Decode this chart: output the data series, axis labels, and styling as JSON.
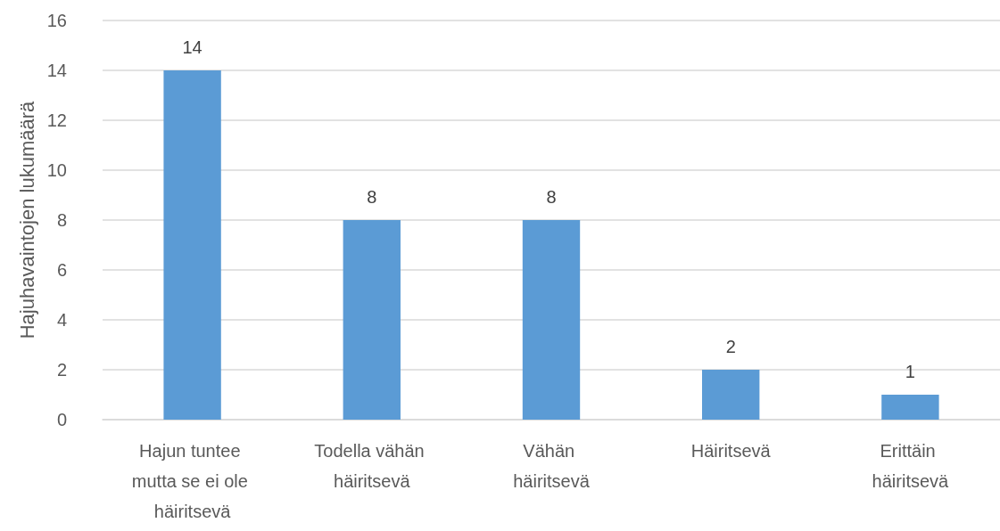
{
  "chart_data": {
    "type": "bar",
    "ylabel": "Hajuhavaintojen lukumäärä",
    "categories": [
      "Hajun tuntee mutta se ei ole häiritsevä",
      "Todella vähän häiritsevä",
      "Vähän häiritsevä",
      "Häiritsevä",
      "Erittäin häiritsevä"
    ],
    "values": [
      14,
      8,
      8,
      2,
      1
    ],
    "color": "#5b9bd5",
    "ylim": [
      0,
      16
    ],
    "yticks": [
      0,
      2,
      4,
      6,
      8,
      10,
      12,
      14,
      16
    ],
    "grid": "y",
    "data_labels": true
  }
}
